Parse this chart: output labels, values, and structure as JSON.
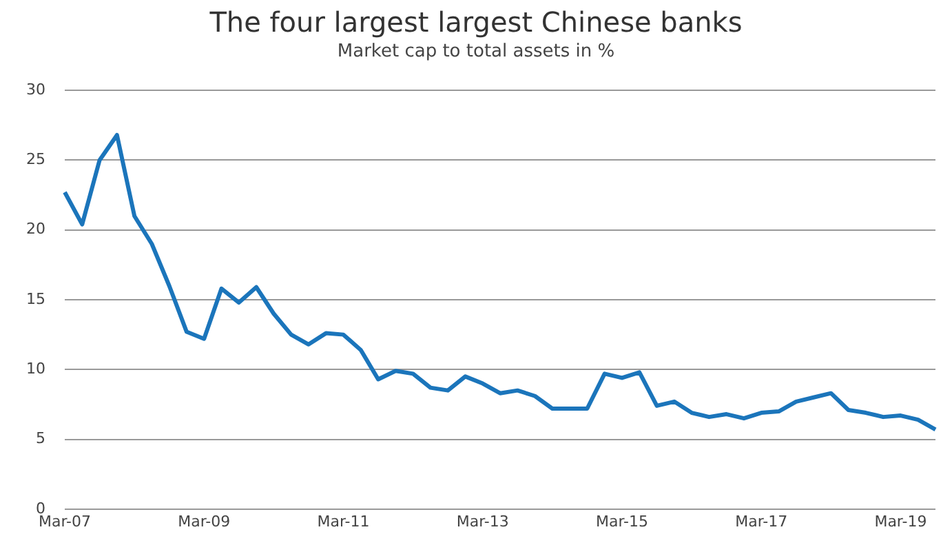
{
  "chart_data": {
    "type": "line",
    "title": "The four largest largest Chinese banks",
    "subtitle": "Market cap to total assets in %",
    "categories": [
      "Mar-07",
      null,
      null,
      null,
      null,
      null,
      null,
      null,
      "Mar-09",
      null,
      null,
      null,
      null,
      null,
      null,
      null,
      "Mar-11",
      null,
      null,
      null,
      null,
      null,
      null,
      null,
      "Mar-13",
      null,
      null,
      null,
      null,
      null,
      null,
      null,
      "Mar-15",
      null,
      null,
      null,
      null,
      null,
      null,
      null,
      "Mar-17",
      null,
      null,
      null,
      null,
      null,
      null,
      null,
      "Mar-19",
      null,
      null
    ],
    "series": [
      {
        "color": "#1b75bb",
        "values": [
          22.7,
          20.4,
          25.0,
          26.8,
          21.0,
          19.0,
          16.0,
          12.7,
          12.2,
          15.8,
          14.8,
          15.9,
          14.0,
          12.5,
          11.8,
          12.6,
          12.5,
          11.4,
          9.3,
          9.9,
          9.7,
          8.7,
          8.5,
          9.5,
          9.0,
          8.3,
          8.5,
          8.1,
          7.2,
          7.2,
          7.2,
          9.7,
          9.4,
          9.8,
          7.4,
          7.7,
          6.9,
          6.6,
          6.8,
          6.5,
          6.9,
          7.0,
          7.7,
          8.0,
          8.3,
          7.1,
          6.9,
          6.6,
          6.7,
          6.4,
          5.7
        ]
      }
    ],
    "ylim": [
      0,
      30
    ],
    "yticks": [
      0,
      5,
      10,
      15,
      20,
      25,
      30
    ],
    "grid": "y",
    "legend": false,
    "marker": "none",
    "line_style": "solid"
  }
}
